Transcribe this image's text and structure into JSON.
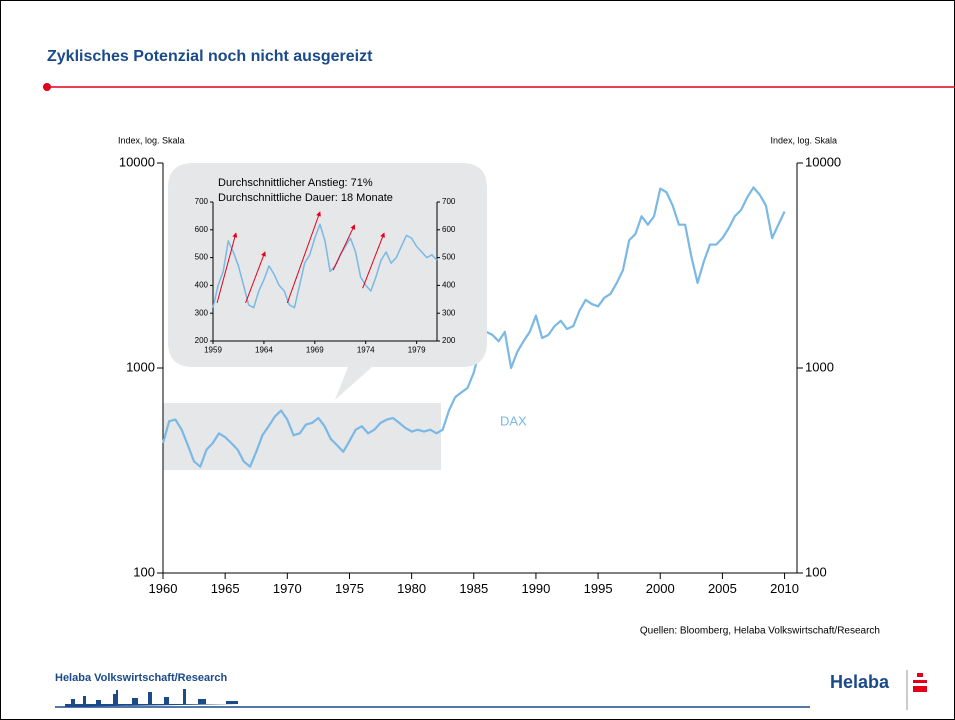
{
  "header": {
    "title": "Zyklisches Potenzial noch nicht ausgereizt"
  },
  "chart_data": [
    {
      "type": "line",
      "y_label": "Index, log. Skala",
      "y2_label": "Index, log. Skala",
      "ylog": true,
      "ylim": [
        100,
        10000
      ],
      "yticks": [
        100,
        1000,
        10000
      ],
      "y2lim": [
        100,
        10000
      ],
      "y2ticks": [
        100,
        1000,
        10000
      ],
      "xlim": [
        1960,
        2011
      ],
      "xticks": [
        1960,
        1965,
        1970,
        1975,
        1980,
        1985,
        1990,
        1995,
        2000,
        2005,
        2010
      ],
      "x": [
        1960,
        1960.5,
        1961,
        1961.5,
        1962,
        1962.5,
        1963,
        1963.5,
        1964,
        1964.5,
        1965,
        1965.5,
        1966,
        1966.5,
        1967,
        1967.5,
        1968,
        1968.5,
        1969,
        1969.5,
        1970,
        1970.5,
        1971,
        1971.5,
        1972,
        1972.5,
        1973,
        1973.5,
        1974,
        1974.5,
        1975,
        1975.5,
        1976,
        1976.5,
        1977,
        1977.5,
        1978,
        1978.5,
        1979,
        1979.5,
        1980,
        1980.5,
        1981,
        1981.5,
        1982,
        1982.5,
        1983,
        1983.5,
        1984,
        1984.5,
        1985,
        1985.5,
        1986,
        1986.5,
        1987,
        1987.5,
        1988,
        1988.5,
        1989,
        1989.5,
        1990,
        1990.5,
        1991,
        1991.5,
        1992,
        1992.5,
        1993,
        1993.5,
        1994,
        1994.5,
        1995,
        1995.5,
        1996,
        1996.5,
        1997,
        1997.5,
        1998,
        1998.5,
        1999,
        1999.5,
        2000,
        2000.5,
        2001,
        2001.5,
        2002,
        2002.5,
        2003,
        2003.5,
        2004,
        2004.5,
        2005,
        2005.5,
        2006,
        2006.5,
        2007,
        2007.5,
        2008,
        2008.5,
        2009,
        2009.5,
        2010
      ],
      "series": [
        {
          "name": "DAX",
          "color": "#7ab8e5",
          "values": [
            430,
            550,
            560,
            500,
            420,
            350,
            330,
            400,
            430,
            480,
            460,
            430,
            400,
            350,
            330,
            390,
            470,
            520,
            580,
            620,
            560,
            470,
            480,
            530,
            540,
            570,
            520,
            450,
            420,
            390,
            440,
            500,
            520,
            480,
            500,
            540,
            560,
            570,
            540,
            510,
            490,
            500,
            490,
            500,
            480,
            500,
            620,
            720,
            760,
            800,
            950,
            1250,
            1500,
            1450,
            1350,
            1500,
            1000,
            1200,
            1350,
            1500,
            1800,
            1400,
            1450,
            1600,
            1700,
            1550,
            1600,
            1900,
            2150,
            2050,
            2000,
            2200,
            2300,
            2600,
            3000,
            4200,
            4500,
            5500,
            5000,
            5500,
            7500,
            7200,
            6200,
            5000,
            5000,
            3500,
            2600,
            3300,
            4000,
            4000,
            4300,
            4800,
            5500,
            5900,
            6800,
            7600,
            7000,
            6200,
            4300,
            5000,
            5800
          ]
        }
      ],
      "source": "Quellen: Bloomberg, Helaba Volkswirtschaft/Research"
    },
    {
      "type": "line",
      "annotations": [
        "Durchschnittlicher Anstieg: 71%",
        "Durchschnittliche Dauer: 18 Monate"
      ],
      "ylim": [
        200,
        700
      ],
      "yticks": [
        200,
        300,
        400,
        500,
        600,
        700
      ],
      "y2lim": [
        200,
        700
      ],
      "y2ticks": [
        200,
        300,
        400,
        500,
        600,
        700
      ],
      "xlim": [
        1959,
        1981
      ],
      "xticks": [
        1959,
        1964,
        1969,
        1974,
        1979
      ],
      "x": [
        1959,
        1959.5,
        1960,
        1960.5,
        1961,
        1961.5,
        1962,
        1962.5,
        1963,
        1963.5,
        1964,
        1964.5,
        1965,
        1965.5,
        1966,
        1966.5,
        1967,
        1967.5,
        1968,
        1968.5,
        1969,
        1969.5,
        1970,
        1970.5,
        1971,
        1971.5,
        1972,
        1972.5,
        1973,
        1973.5,
        1974,
        1974.5,
        1975,
        1975.5,
        1976,
        1976.5,
        1977,
        1977.5,
        1978,
        1978.5,
        1979,
        1979.5,
        1980,
        1980.5,
        1981
      ],
      "series": [
        {
          "color": "#7ab8e5",
          "values": [
            320,
            400,
            450,
            560,
            520,
            470,
            400,
            330,
            320,
            380,
            420,
            470,
            440,
            400,
            380,
            330,
            320,
            400,
            480,
            510,
            570,
            620,
            560,
            450,
            470,
            510,
            540,
            570,
            520,
            430,
            400,
            380,
            430,
            490,
            520,
            480,
            500,
            540,
            580,
            570,
            540,
            520,
            500,
            510,
            490
          ]
        }
      ],
      "arrow_color": "#e3001b",
      "arrows": [
        {
          "x0": 1959.4,
          "y0": 337,
          "x1": 1961.25,
          "y1": 588
        },
        {
          "x0": 1962.2,
          "y0": 337,
          "x1": 1964.1,
          "y1": 520
        },
        {
          "x0": 1966.3,
          "y0": 337,
          "x1": 1969.5,
          "y1": 664
        },
        {
          "x0": 1970.8,
          "y0": 455,
          "x1": 1972.9,
          "y1": 617
        },
        {
          "x0": 1973.7,
          "y0": 390,
          "x1": 1975.8,
          "y1": 588
        }
      ]
    }
  ],
  "footer": {
    "department": "Helaba Volkswirtschaft/Research",
    "logo": "Helaba"
  }
}
